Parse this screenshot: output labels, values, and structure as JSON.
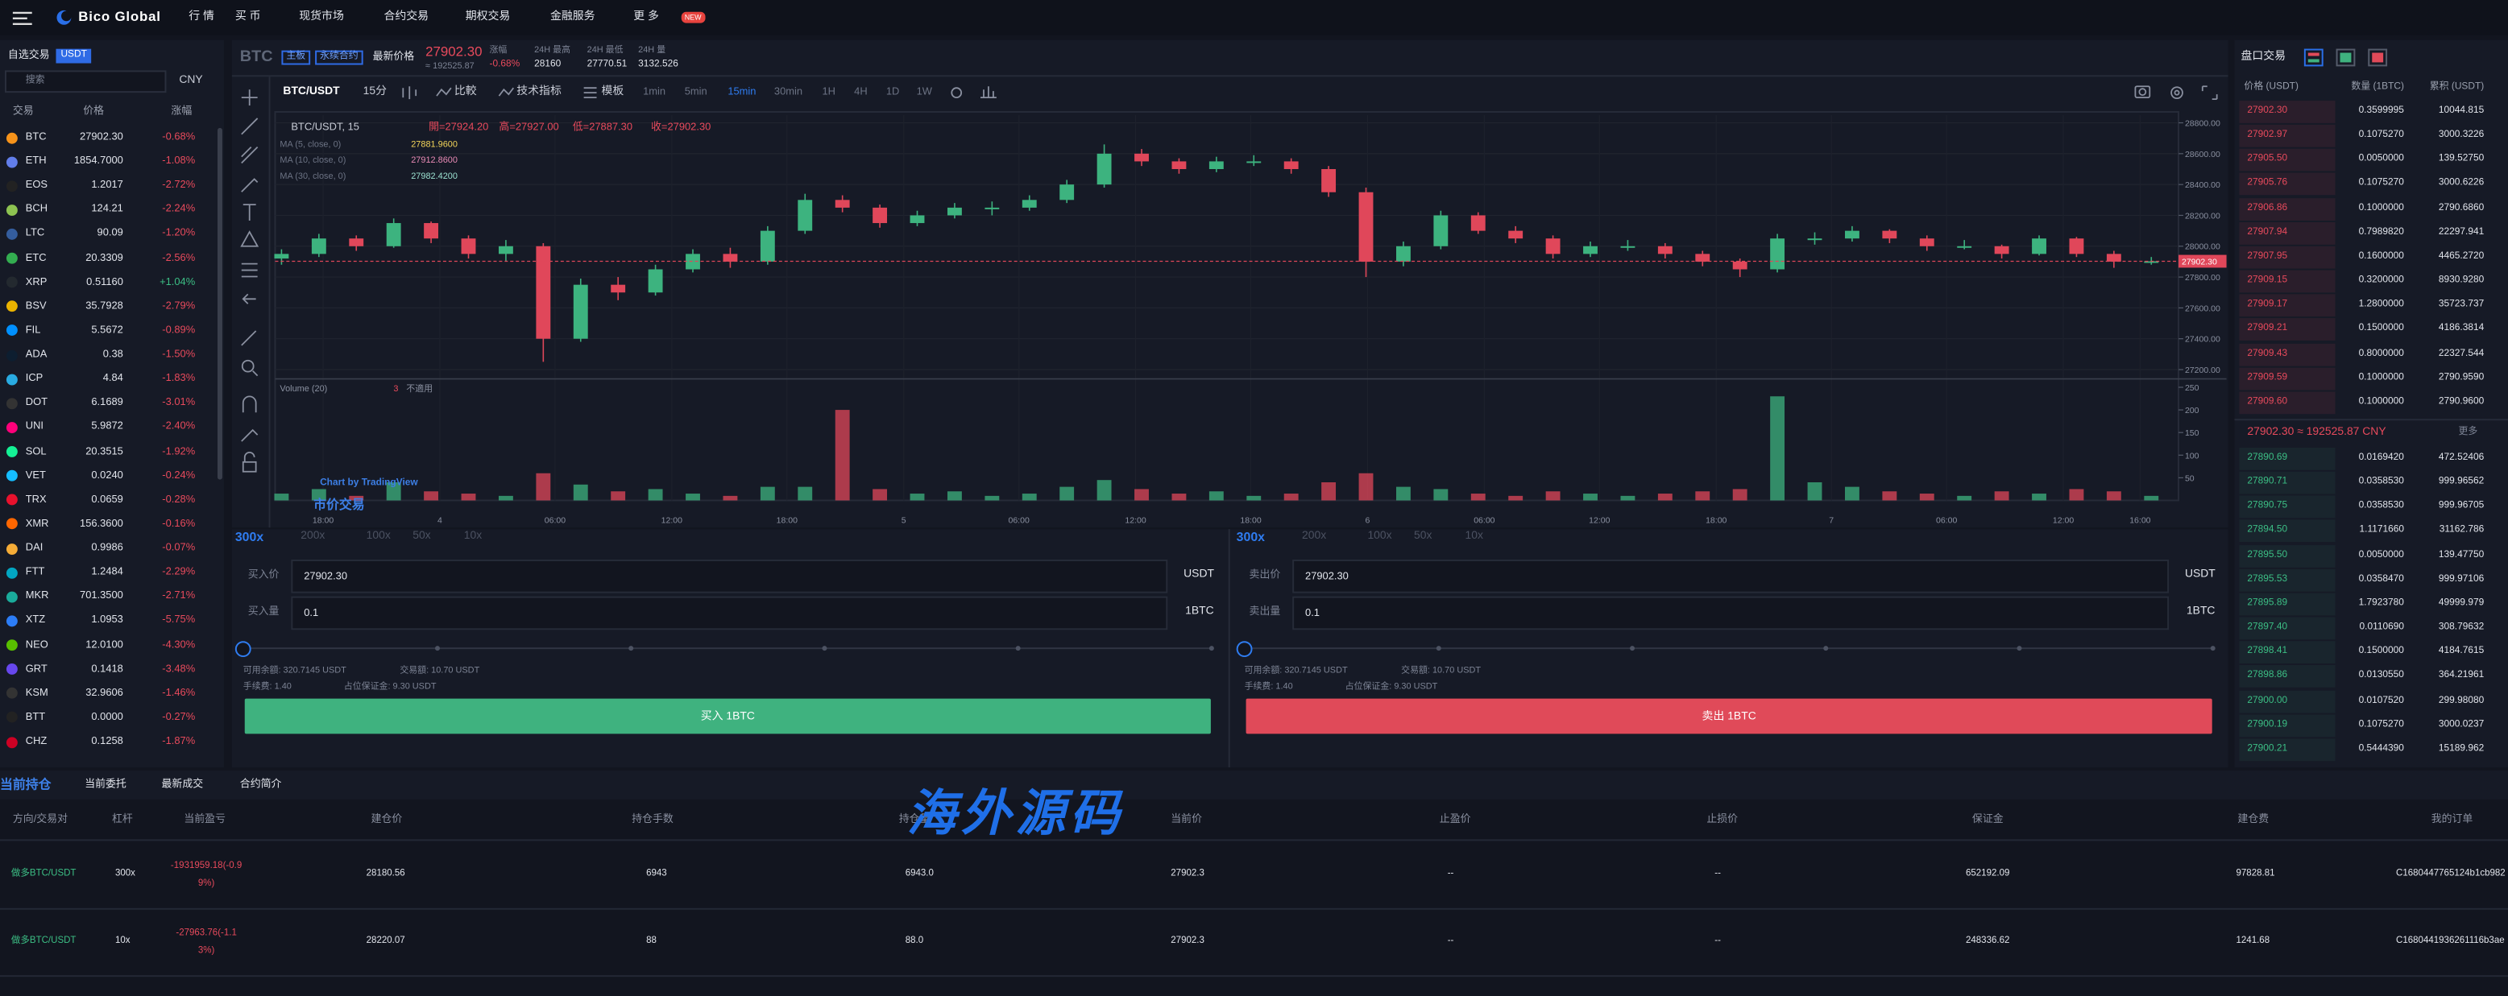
{
  "nav": {
    "logo": "Bico Global",
    "items": [
      "行 情",
      "买 币",
      "现货市场",
      "合约交易",
      "期权交易",
      "金融服务",
      "更 多"
    ],
    "badge": "NEW"
  },
  "market": {
    "tabs": [
      "自选交易",
      "USDT"
    ],
    "search": "搜索",
    "currency": "CNY",
    "headers": [
      "交易",
      "价格",
      "涨幅"
    ],
    "rows": [
      [
        "BTC",
        "27902.30",
        "-0.68%"
      ],
      [
        "ETH",
        "1854.7000",
        "-1.08%"
      ],
      [
        "EOS",
        "1.2017",
        "-2.72%"
      ],
      [
        "BCH",
        "124.21",
        "-2.24%"
      ],
      [
        "LTC",
        "90.09",
        "-1.20%"
      ],
      [
        "ETC",
        "20.3309",
        "-2.56%"
      ],
      [
        "XRP",
        "0.51160",
        "+1.04%"
      ],
      [
        "BSV",
        "35.7928",
        "-2.79%"
      ],
      [
        "FIL",
        "5.5672",
        "-0.89%"
      ],
      [
        "ADA",
        "0.38",
        "-1.50%"
      ],
      [
        "ICP",
        "4.84",
        "-1.83%"
      ],
      [
        "DOT",
        "6.1689",
        "-3.01%"
      ],
      [
        "UNI",
        "5.9872",
        "-2.40%"
      ],
      [
        "SOL",
        "20.3515",
        "-1.92%"
      ],
      [
        "VET",
        "0.0240",
        "-0.24%"
      ],
      [
        "TRX",
        "0.0659",
        "-0.28%"
      ],
      [
        "XMR",
        "156.3600",
        "-0.16%"
      ],
      [
        "DAI",
        "0.9986",
        "-0.07%"
      ],
      [
        "FTT",
        "1.2484",
        "-2.29%"
      ],
      [
        "MKR",
        "701.3500",
        "-2.71%"
      ],
      [
        "XTZ",
        "1.0953",
        "-5.75%"
      ],
      [
        "NEO",
        "12.0100",
        "-4.30%"
      ],
      [
        "GRT",
        "0.1418",
        "-3.48%"
      ],
      [
        "KSM",
        "32.9606",
        "-1.46%"
      ],
      [
        "BTT",
        "0.0000",
        "-0.27%"
      ],
      [
        "CHZ",
        "0.1258",
        "-1.87%"
      ]
    ]
  },
  "ticker": {
    "symbol": "BTC",
    "tags": [
      "主板",
      "永续合约"
    ],
    "price_label": "最新价格",
    "price": "27902.30",
    "cny": "≈ 192525.87",
    "stats": [
      {
        "label": "涨幅",
        "value": "-0.68%"
      },
      {
        "label": "24H 最高",
        "value": "28160"
      },
      {
        "label": "24H 最低",
        "value": "27770.51"
      },
      {
        "label": "24H 量",
        "value": "3132.526"
      }
    ]
  },
  "toolbar": {
    "pair": "BTC/USDT",
    "interval": "15分",
    "compare": "比較",
    "indicators": "技术指标",
    "template": "模板",
    "intervals": [
      "1min",
      "5min",
      "15min",
      "30min",
      "1H",
      "4H",
      "1D",
      "1W"
    ]
  },
  "chart_data": {
    "type": "candlestick",
    "legend_title": "BTC/USDT, 15",
    "ohlc": [
      "開=27924.20",
      "高=27927.00",
      "低=27887.30",
      "收=27902.30"
    ],
    "ma": [
      {
        "name": "MA (5, close, 0)",
        "value": "27881.9600",
        "color": "#f5d65a"
      },
      {
        "name": "MA (10, close, 0)",
        "value": "27912.8600",
        "color": "#e88ab5"
      },
      {
        "name": "MA (30, close, 0)",
        "value": "27982.4200",
        "color": "#9be0d0"
      }
    ],
    "ylim": [
      27150,
      28850
    ],
    "yticks": [
      {
        "value": 27200,
        "label": "27200.00"
      },
      {
        "value": 27400,
        "label": "27400.00"
      },
      {
        "value": 27600,
        "label": "27600.00"
      },
      {
        "value": 27800,
        "label": "27800.00"
      },
      {
        "value": 28000,
        "label": "28000.00"
      },
      {
        "value": 28200,
        "label": "28200.00"
      },
      {
        "value": 28400,
        "label": "28400.00"
      },
      {
        "value": 28600,
        "label": "28600.00"
      },
      {
        "value": 28800,
        "label": "28800.00"
      }
    ],
    "price_tag": {
      "value": 27902.3,
      "label": "27902.30"
    },
    "up_color": "#3db37f",
    "down_color": "#e0475a",
    "grid": true,
    "x_labels": [
      "18:00",
      "4",
      "06:00",
      "12:00",
      "18:00",
      "5",
      "06:00",
      "12:00",
      "18:00",
      "6",
      "06:00",
      "12:00",
      "18:00",
      "7",
      "06:00",
      "12:00",
      "16:00"
    ],
    "candles": [
      [
        27920,
        27980,
        27880,
        27950
      ],
      [
        27950,
        28080,
        27930,
        28050
      ],
      [
        28050,
        28070,
        27970,
        28000
      ],
      [
        28000,
        28180,
        27990,
        28150
      ],
      [
        28150,
        28160,
        28020,
        28050
      ],
      [
        28050,
        28070,
        27920,
        27950
      ],
      [
        27950,
        28040,
        27900,
        28000
      ],
      [
        28000,
        28020,
        27250,
        27400
      ],
      [
        27400,
        27790,
        27380,
        27750
      ],
      [
        27750,
        27800,
        27650,
        27700
      ],
      [
        27700,
        27880,
        27680,
        27850
      ],
      [
        27850,
        27980,
        27830,
        27950
      ],
      [
        27950,
        27990,
        27860,
        27900
      ],
      [
        27900,
        28130,
        27880,
        28100
      ],
      [
        28100,
        28340,
        28080,
        28300
      ],
      [
        28300,
        28330,
        28220,
        28250
      ],
      [
        28250,
        28270,
        28120,
        28150
      ],
      [
        28150,
        28230,
        28130,
        28200
      ],
      [
        28200,
        28280,
        28180,
        28250
      ],
      [
        28250,
        28290,
        28200,
        28250
      ],
      [
        28250,
        28330,
        28230,
        28300
      ],
      [
        28300,
        28430,
        28280,
        28400
      ],
      [
        28400,
        28660,
        28380,
        28600
      ],
      [
        28600,
        28630,
        28520,
        28550
      ],
      [
        28550,
        28570,
        28470,
        28500
      ],
      [
        28500,
        28580,
        28480,
        28550
      ],
      [
        28550,
        28590,
        28520,
        28550
      ],
      [
        28550,
        28570,
        28470,
        28500
      ],
      [
        28500,
        28520,
        28320,
        28350
      ],
      [
        28350,
        28380,
        27800,
        27900
      ],
      [
        27900,
        28030,
        27870,
        28000
      ],
      [
        28000,
        28230,
        27980,
        28200
      ],
      [
        28200,
        28220,
        28080,
        28100
      ],
      [
        28100,
        28130,
        28020,
        28050
      ],
      [
        28050,
        28070,
        27920,
        27950
      ],
      [
        27950,
        28030,
        27930,
        28000
      ],
      [
        28000,
        28040,
        27970,
        28000
      ],
      [
        28000,
        28020,
        27920,
        27950
      ],
      [
        27950,
        27970,
        27870,
        27900
      ],
      [
        27900,
        27920,
        27800,
        27850
      ],
      [
        27850,
        28080,
        27830,
        28050
      ],
      [
        28050,
        28090,
        28010,
        28050
      ],
      [
        28050,
        28130,
        28030,
        28100
      ],
      [
        28100,
        28110,
        28020,
        28050
      ],
      [
        28050,
        28070,
        27970,
        28000
      ],
      [
        28000,
        28040,
        27980,
        28000
      ],
      [
        28000,
        28010,
        27920,
        27950
      ],
      [
        27950,
        28070,
        27940,
        28050
      ],
      [
        28050,
        28060,
        27930,
        27950
      ],
      [
        27950,
        27970,
        27860,
        27900
      ],
      [
        27900,
        27930,
        27880,
        27902.3
      ]
    ],
    "volume": {
      "title": "Volume (20)",
      "value": "3",
      "na": "不適用",
      "ylim": [
        0,
        265
      ],
      "yticks": [
        50,
        100,
        150,
        200,
        250
      ],
      "values": [
        15,
        25,
        10,
        40,
        20,
        15,
        10,
        60,
        35,
        20,
        25,
        15,
        10,
        30,
        30,
        200,
        25,
        15,
        20,
        10,
        15,
        30,
        45,
        25,
        15,
        20,
        10,
        15,
        40,
        60,
        30,
        25,
        15,
        10,
        20,
        15,
        10,
        15,
        20,
        25,
        230,
        40,
        30,
        20,
        15,
        10,
        20,
        15,
        25,
        20,
        10
      ]
    },
    "credit": "Chart by TradingView",
    "mode": "市价交易"
  },
  "orders": [
    {
      "leverage": "300x",
      "leverage_options": [
        "200x",
        "100x",
        "50x",
        "10x"
      ],
      "price_label": "买入价",
      "price": "27902.30",
      "price_unit": "USDT",
      "amount_label": "买入量",
      "amount": "0.1",
      "amount_unit": "1BTC",
      "available": "可用余額: 320.7145 USDT",
      "turnover": "交易額: 10.70 USDT",
      "fee": "手续费: 1.40",
      "margin": "占位保证金: 9.30 USDT",
      "button": "买入 1BTC",
      "color": "#3fb27f"
    },
    {
      "leverage": "300x",
      "leverage_options": [
        "200x",
        "100x",
        "50x",
        "10x"
      ],
      "price_label": "卖出价",
      "price": "27902.30",
      "price_unit": "USDT",
      "amount_label": "卖出量",
      "amount": "0.1",
      "amount_unit": "1BTC",
      "available": "可用余額: 320.7145 USDT",
      "turnover": "交易額: 10.70 USDT",
      "fee": "手续费: 1.40",
      "margin": "占位保证金: 9.30 USDT",
      "button": "卖出 1BTC",
      "color": "#e04a59"
    }
  ],
  "orderbook": {
    "title": "盘口交易",
    "headers": [
      "价格 (USDT)",
      "数量 (1BTC)",
      "累积 (USDT)"
    ],
    "asks": [
      [
        "27902.30",
        "0.3599995",
        "10044.815"
      ],
      [
        "27902.97",
        "0.1075270",
        "3000.3226"
      ],
      [
        "27905.50",
        "0.0050000",
        "139.52750"
      ],
      [
        "27905.76",
        "0.1075270",
        "3000.6226"
      ],
      [
        "27906.86",
        "0.1000000",
        "2790.6860"
      ],
      [
        "27907.94",
        "0.7989820",
        "22297.941"
      ],
      [
        "27907.95",
        "0.1600000",
        "4465.2720"
      ],
      [
        "27909.15",
        "0.3200000",
        "8930.9280"
      ],
      [
        "27909.17",
        "1.2800000",
        "35723.737"
      ],
      [
        "27909.21",
        "0.1500000",
        "4186.3814"
      ],
      [
        "27909.43",
        "0.8000000",
        "22327.544"
      ],
      [
        "27909.59",
        "0.1000000",
        "2790.9590"
      ],
      [
        "27909.60",
        "0.1000000",
        "2790.9600"
      ]
    ],
    "mid": "27902.30 ≈ 192525.87 CNY",
    "more": "更多",
    "bids": [
      [
        "27890.69",
        "0.0169420",
        "472.52406"
      ],
      [
        "27890.71",
        "0.0358530",
        "999.96562"
      ],
      [
        "27890.75",
        "0.0358530",
        "999.96705"
      ],
      [
        "27894.50",
        "1.1171660",
        "31162.786"
      ],
      [
        "27895.50",
        "0.0050000",
        "139.47750"
      ],
      [
        "27895.53",
        "0.0358470",
        "999.97106"
      ],
      [
        "27895.89",
        "1.7923780",
        "49999.979"
      ],
      [
        "27897.40",
        "0.0110690",
        "308.79632"
      ],
      [
        "27898.41",
        "0.1500000",
        "4184.7615"
      ],
      [
        "27898.86",
        "0.0130550",
        "364.21961"
      ],
      [
        "27900.00",
        "0.0107520",
        "299.98080"
      ],
      [
        "27900.19",
        "0.1075270",
        "3000.0237"
      ],
      [
        "27900.21",
        "0.5444390",
        "15189.962"
      ]
    ]
  },
  "positions": {
    "tabs": [
      "当前持仓",
      "当前委托",
      "最新成交",
      "合约简介"
    ],
    "headers": [
      "方向/交易对",
      "杠杆",
      "当前盈亏",
      "建仓价",
      "持仓手数",
      "持仓量",
      "当前价",
      "止盈价",
      "止损价",
      "保证金",
      "建仓费",
      "我的订单"
    ],
    "rows": [
      [
        "做多BTC/USDT",
        "300x",
        "-1931959.18(-0.99%)",
        "28180.56",
        "6943",
        "6943.0",
        "27902.3",
        "--",
        "--",
        "652192.09",
        "97828.81",
        "C1680447765124b1cb982"
      ],
      [
        "做多BTC/USDT",
        "10x",
        "-27963.76(-1.13%)",
        "28220.07",
        "88",
        "88.0",
        "27902.3",
        "--",
        "--",
        "248336.62",
        "1241.68",
        "C1680441936261116b3ae"
      ]
    ]
  },
  "watermark": "海外源码"
}
